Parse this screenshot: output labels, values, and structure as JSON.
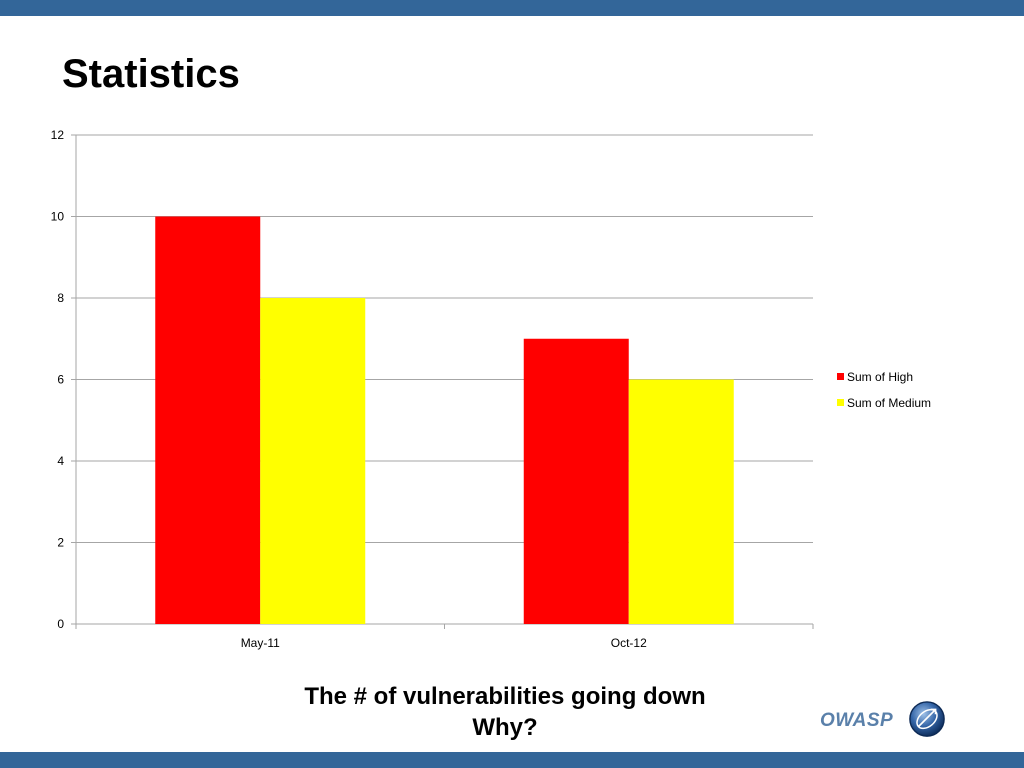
{
  "slide": {
    "title": "Statistics",
    "caption_line1": "The # of vulnerabilities going down",
    "caption_line2": "Why?",
    "logo_text": "OWASP"
  },
  "colors": {
    "band": "#336699",
    "high": "#ff0000",
    "medium": "#ffff00",
    "grid": "#a6a6a6",
    "logo": "#5a80aa"
  },
  "chart_data": {
    "type": "bar",
    "categories": [
      "May-11",
      "Oct-12"
    ],
    "series": [
      {
        "name": "Sum of High",
        "values": [
          10,
          7
        ],
        "color": "#ff0000"
      },
      {
        "name": "Sum of Medium",
        "values": [
          8,
          6
        ],
        "color": "#ffff00"
      }
    ],
    "ylim": [
      0,
      12
    ],
    "yticks": [
      0,
      2,
      4,
      6,
      8,
      10,
      12
    ],
    "grid": true,
    "legend_position": "right"
  }
}
